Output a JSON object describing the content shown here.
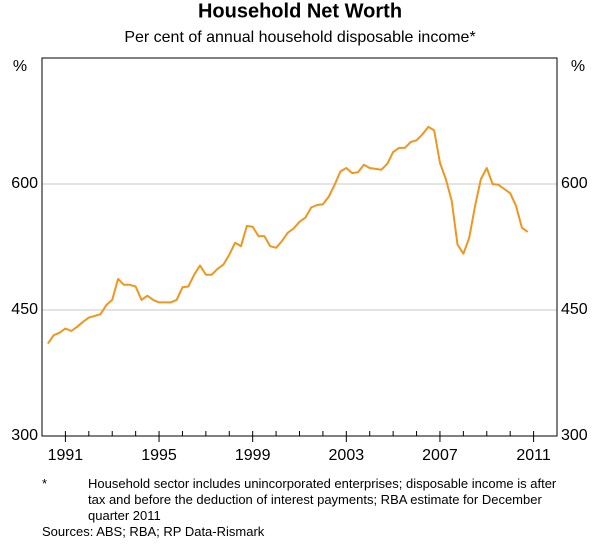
{
  "chart_data": {
    "type": "line",
    "title": "Household Net Worth",
    "subtitle": "Per cent of annual household disposable income*",
    "y_unit_left": "%",
    "y_unit_right": "%",
    "x": [
      1990.25,
      1990.5,
      1990.75,
      1991,
      1991.25,
      1991.5,
      1991.75,
      1992,
      1992.25,
      1992.5,
      1992.75,
      1993,
      1993.25,
      1993.5,
      1993.75,
      1994,
      1994.25,
      1994.5,
      1994.75,
      1995,
      1995.25,
      1995.5,
      1995.75,
      1996,
      1996.25,
      1996.5,
      1996.75,
      1997,
      1997.25,
      1997.5,
      1997.75,
      1998,
      1998.25,
      1998.5,
      1998.75,
      1999,
      1999.25,
      1999.5,
      1999.75,
      2000,
      2000.25,
      2000.5,
      2000.75,
      2001,
      2001.25,
      2001.5,
      2001.75,
      2002,
      2002.25,
      2002.5,
      2002.75,
      2003,
      2003.25,
      2003.5,
      2003.75,
      2004,
      2004.25,
      2004.5,
      2004.75,
      2005,
      2005.25,
      2005.5,
      2005.75,
      2006,
      2006.25,
      2006.5,
      2006.75,
      2007,
      2007.25,
      2007.5,
      2007.75,
      2008,
      2008.25,
      2008.5,
      2008.75,
      2009,
      2009.25,
      2009.5,
      2009.75,
      2010,
      2010.25,
      2010.5,
      2010.75
    ],
    "series": [
      {
        "name": "Household net worth",
        "color": "#f0961e",
        "values": [
          410,
          420,
          423,
          428,
          425,
          430,
          436,
          441,
          443,
          445,
          456,
          462,
          487,
          480,
          480,
          478,
          462,
          467,
          462,
          459,
          459,
          459,
          462,
          477,
          478,
          492,
          503,
          492,
          492,
          499,
          504,
          516,
          530,
          526,
          550,
          549,
          538,
          538,
          526,
          524,
          532,
          542,
          547,
          555,
          560,
          572,
          575,
          576,
          585,
          599,
          615,
          619,
          613,
          614,
          623,
          619,
          618,
          617,
          624,
          638,
          643,
          643,
          650,
          652,
          659,
          668,
          664,
          625,
          606,
          580,
          528,
          517,
          536,
          574,
          606,
          619,
          600,
          599,
          594,
          589,
          574,
          548,
          543
        ]
      }
    ],
    "xlim": [
      1990,
      2012
    ],
    "xticks": [
      1991,
      1995,
      1999,
      2003,
      2007,
      2011
    ],
    "ylim": [
      300,
      750
    ],
    "yticks": [
      300,
      450,
      600
    ],
    "grid": true,
    "notes": [
      "*",
      "Household sector includes unincorporated enterprises; disposable income is after tax and before the deduction of interest payments; RBA estimate for December quarter 2011",
      "Sources: ABS; RBA; RP Data-Rismark"
    ]
  }
}
